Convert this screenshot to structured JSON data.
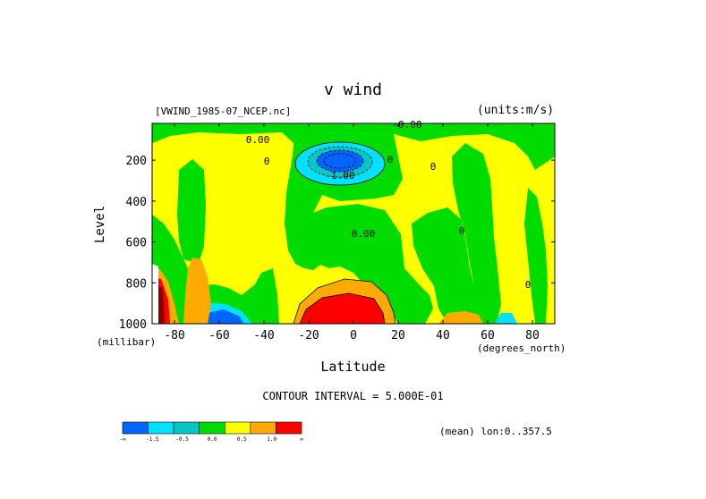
{
  "chart_data": {
    "type": "heatmap",
    "title": "v wind",
    "dataset": "[VWIND_1985-07_NCEP.nc]",
    "units": "(units:m/s)",
    "xlabel": "Latitude",
    "x_unit": "(degrees_north)",
    "ylabel": "Level",
    "y_unit": "(millibar)",
    "xlim": [
      -90,
      90
    ],
    "ylim": [
      1000,
      20
    ],
    "x_ticks": [
      -80,
      -60,
      -40,
      -20,
      0,
      20,
      40,
      60,
      80
    ],
    "y_ticks": [
      200,
      400,
      600,
      800,
      1000
    ],
    "contour_interval": "CONTOUR INTERVAL = 5.000E-01",
    "contour_labels": [
      "0.00",
      "-1.00",
      "-0.00",
      "0.00",
      "0",
      "0",
      "0",
      "0",
      "0"
    ],
    "averaging": "(mean) lon:0..357.5",
    "colorbar": {
      "colors": [
        "#0064ff",
        "#00e1ff",
        "#00c8c8",
        "#00dc00",
        "#ffff00",
        "#ffaa00",
        "#ff0000"
      ],
      "labels": [
        "-∞",
        "-1.5",
        "-0.5",
        "0.0",
        "0.5",
        "1.0",
        "∞"
      ]
    }
  }
}
